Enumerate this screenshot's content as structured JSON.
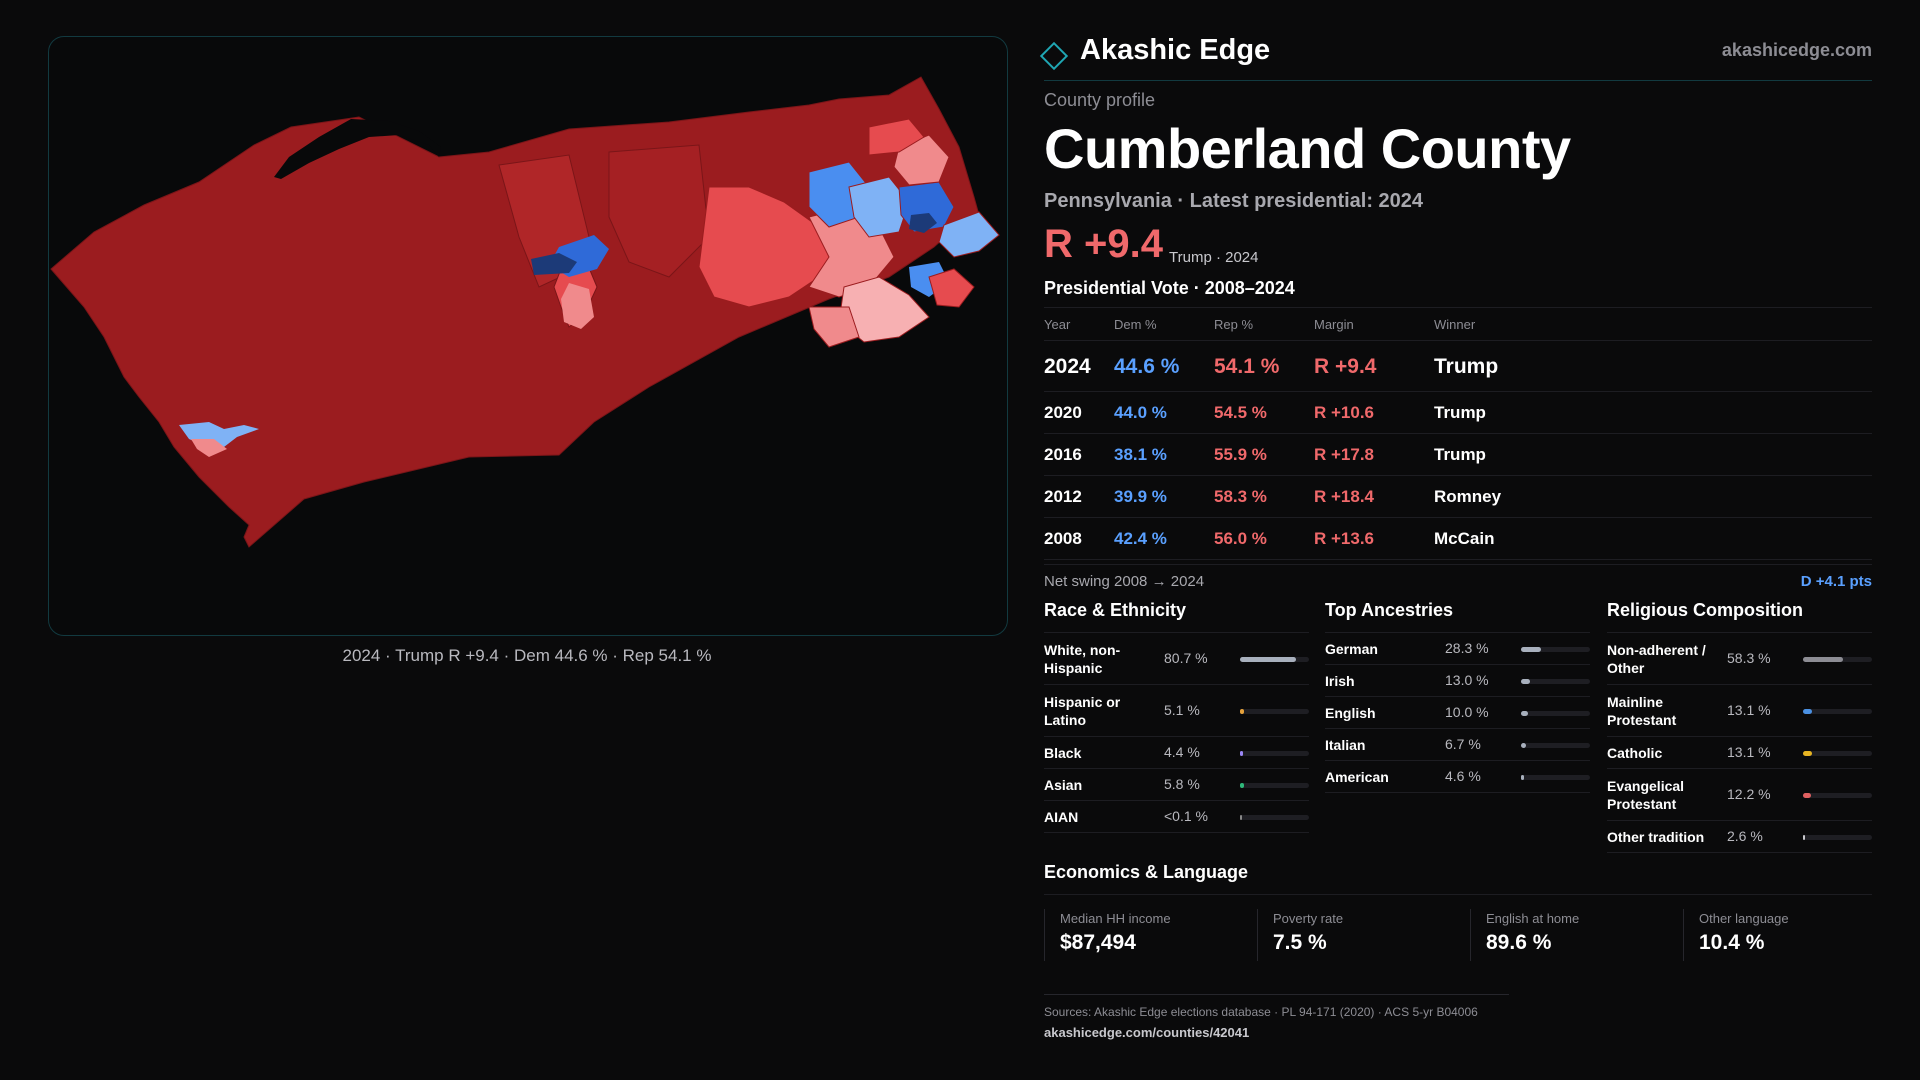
{
  "brand": {
    "name": "Akashic Edge",
    "url": "akashicedge.com"
  },
  "map": {
    "caption": "2024 · Trump R +9.4 · Dem 44.6 % · Rep 54.1 %"
  },
  "profile": {
    "eyebrow": "County profile",
    "title": "Cumberland County",
    "subline": "Pennsylvania · Latest presidential: 2024",
    "headline_margin": "R +9.4",
    "headline_note": "Trump · 2024"
  },
  "vote": {
    "title": "Presidential Vote · 2008–2024",
    "headers": {
      "year": "Year",
      "dem": "Dem %",
      "rep": "Rep %",
      "margin": "Margin",
      "winner": "Winner"
    },
    "rows": [
      {
        "year": "2024",
        "dem": "44.6 %",
        "rep": "54.1 %",
        "margin": "R +9.4",
        "winner": "Trump"
      },
      {
        "year": "2020",
        "dem": "44.0 %",
        "rep": "54.5 %",
        "margin": "R +10.6",
        "winner": "Trump"
      },
      {
        "year": "2016",
        "dem": "38.1 %",
        "rep": "55.9 %",
        "margin": "R +17.8",
        "winner": "Trump"
      },
      {
        "year": "2012",
        "dem": "39.9 %",
        "rep": "58.3 %",
        "margin": "R +18.4",
        "winner": "Romney"
      },
      {
        "year": "2008",
        "dem": "42.4 %",
        "rep": "56.0 %",
        "margin": "R +13.6",
        "winner": "McCain"
      }
    ],
    "swing_label": "Net swing 2008 → 2024",
    "swing_value": "D +4.1 pts"
  },
  "race": {
    "title": "Race & Ethnicity",
    "items": [
      {
        "label": "White, non-Hispanic",
        "pct": "80.7 %",
        "value": 80.7,
        "color": "#a8b0bd"
      },
      {
        "label": "Hispanic or Latino",
        "pct": "5.1 %",
        "value": 5.1,
        "color": "#e6a23c"
      },
      {
        "label": "Black",
        "pct": "4.4 %",
        "value": 4.4,
        "color": "#9b87f5"
      },
      {
        "label": "Asian",
        "pct": "5.8 %",
        "value": 5.8,
        "color": "#2fb87a"
      },
      {
        "label": "AIAN",
        "pct": "<0.1 %",
        "value": 0.05,
        "color": "#888888"
      }
    ]
  },
  "ancestry": {
    "title": "Top Ancestries",
    "items": [
      {
        "label": "German",
        "pct": "28.3 %",
        "value": 28.3,
        "color": "#a8b0bd"
      },
      {
        "label": "Irish",
        "pct": "13.0 %",
        "value": 13.0,
        "color": "#a8b0bd"
      },
      {
        "label": "English",
        "pct": "10.0 %",
        "value": 10.0,
        "color": "#a8b0bd"
      },
      {
        "label": "Italian",
        "pct": "6.7 %",
        "value": 6.7,
        "color": "#a8b0bd"
      },
      {
        "label": "American",
        "pct": "4.6 %",
        "value": 4.6,
        "color": "#a8b0bd"
      }
    ]
  },
  "religion": {
    "title": "Religious Composition",
    "items": [
      {
        "label": "Non-adherent / Other",
        "pct": "58.3 %",
        "value": 58.3,
        "color": "#8d8d94"
      },
      {
        "label": "Mainline Protestant",
        "pct": "13.1 %",
        "value": 13.1,
        "color": "#4a90e2"
      },
      {
        "label": "Catholic",
        "pct": "13.1 %",
        "value": 13.1,
        "color": "#e6b422"
      },
      {
        "label": "Evangelical Protestant",
        "pct": "12.2 %",
        "value": 12.2,
        "color": "#e06060"
      },
      {
        "label": "Other tradition",
        "pct": "2.6 %",
        "value": 2.6,
        "color": "#c8c8cd"
      }
    ]
  },
  "economics": {
    "title": "Economics & Language",
    "items": [
      {
        "label": "Median HH income",
        "value": "$87,494"
      },
      {
        "label": "Poverty rate",
        "value": "7.5 %"
      },
      {
        "label": "English at home",
        "value": "89.6 %"
      },
      {
        "label": "Other language",
        "value": "10.4 %"
      }
    ]
  },
  "footer": {
    "sources": "Sources: Akashic Edge elections database · PL 94-171 (2020) · ACS 5-yr B04006",
    "url": "akashicedge.com/counties/42041"
  }
}
